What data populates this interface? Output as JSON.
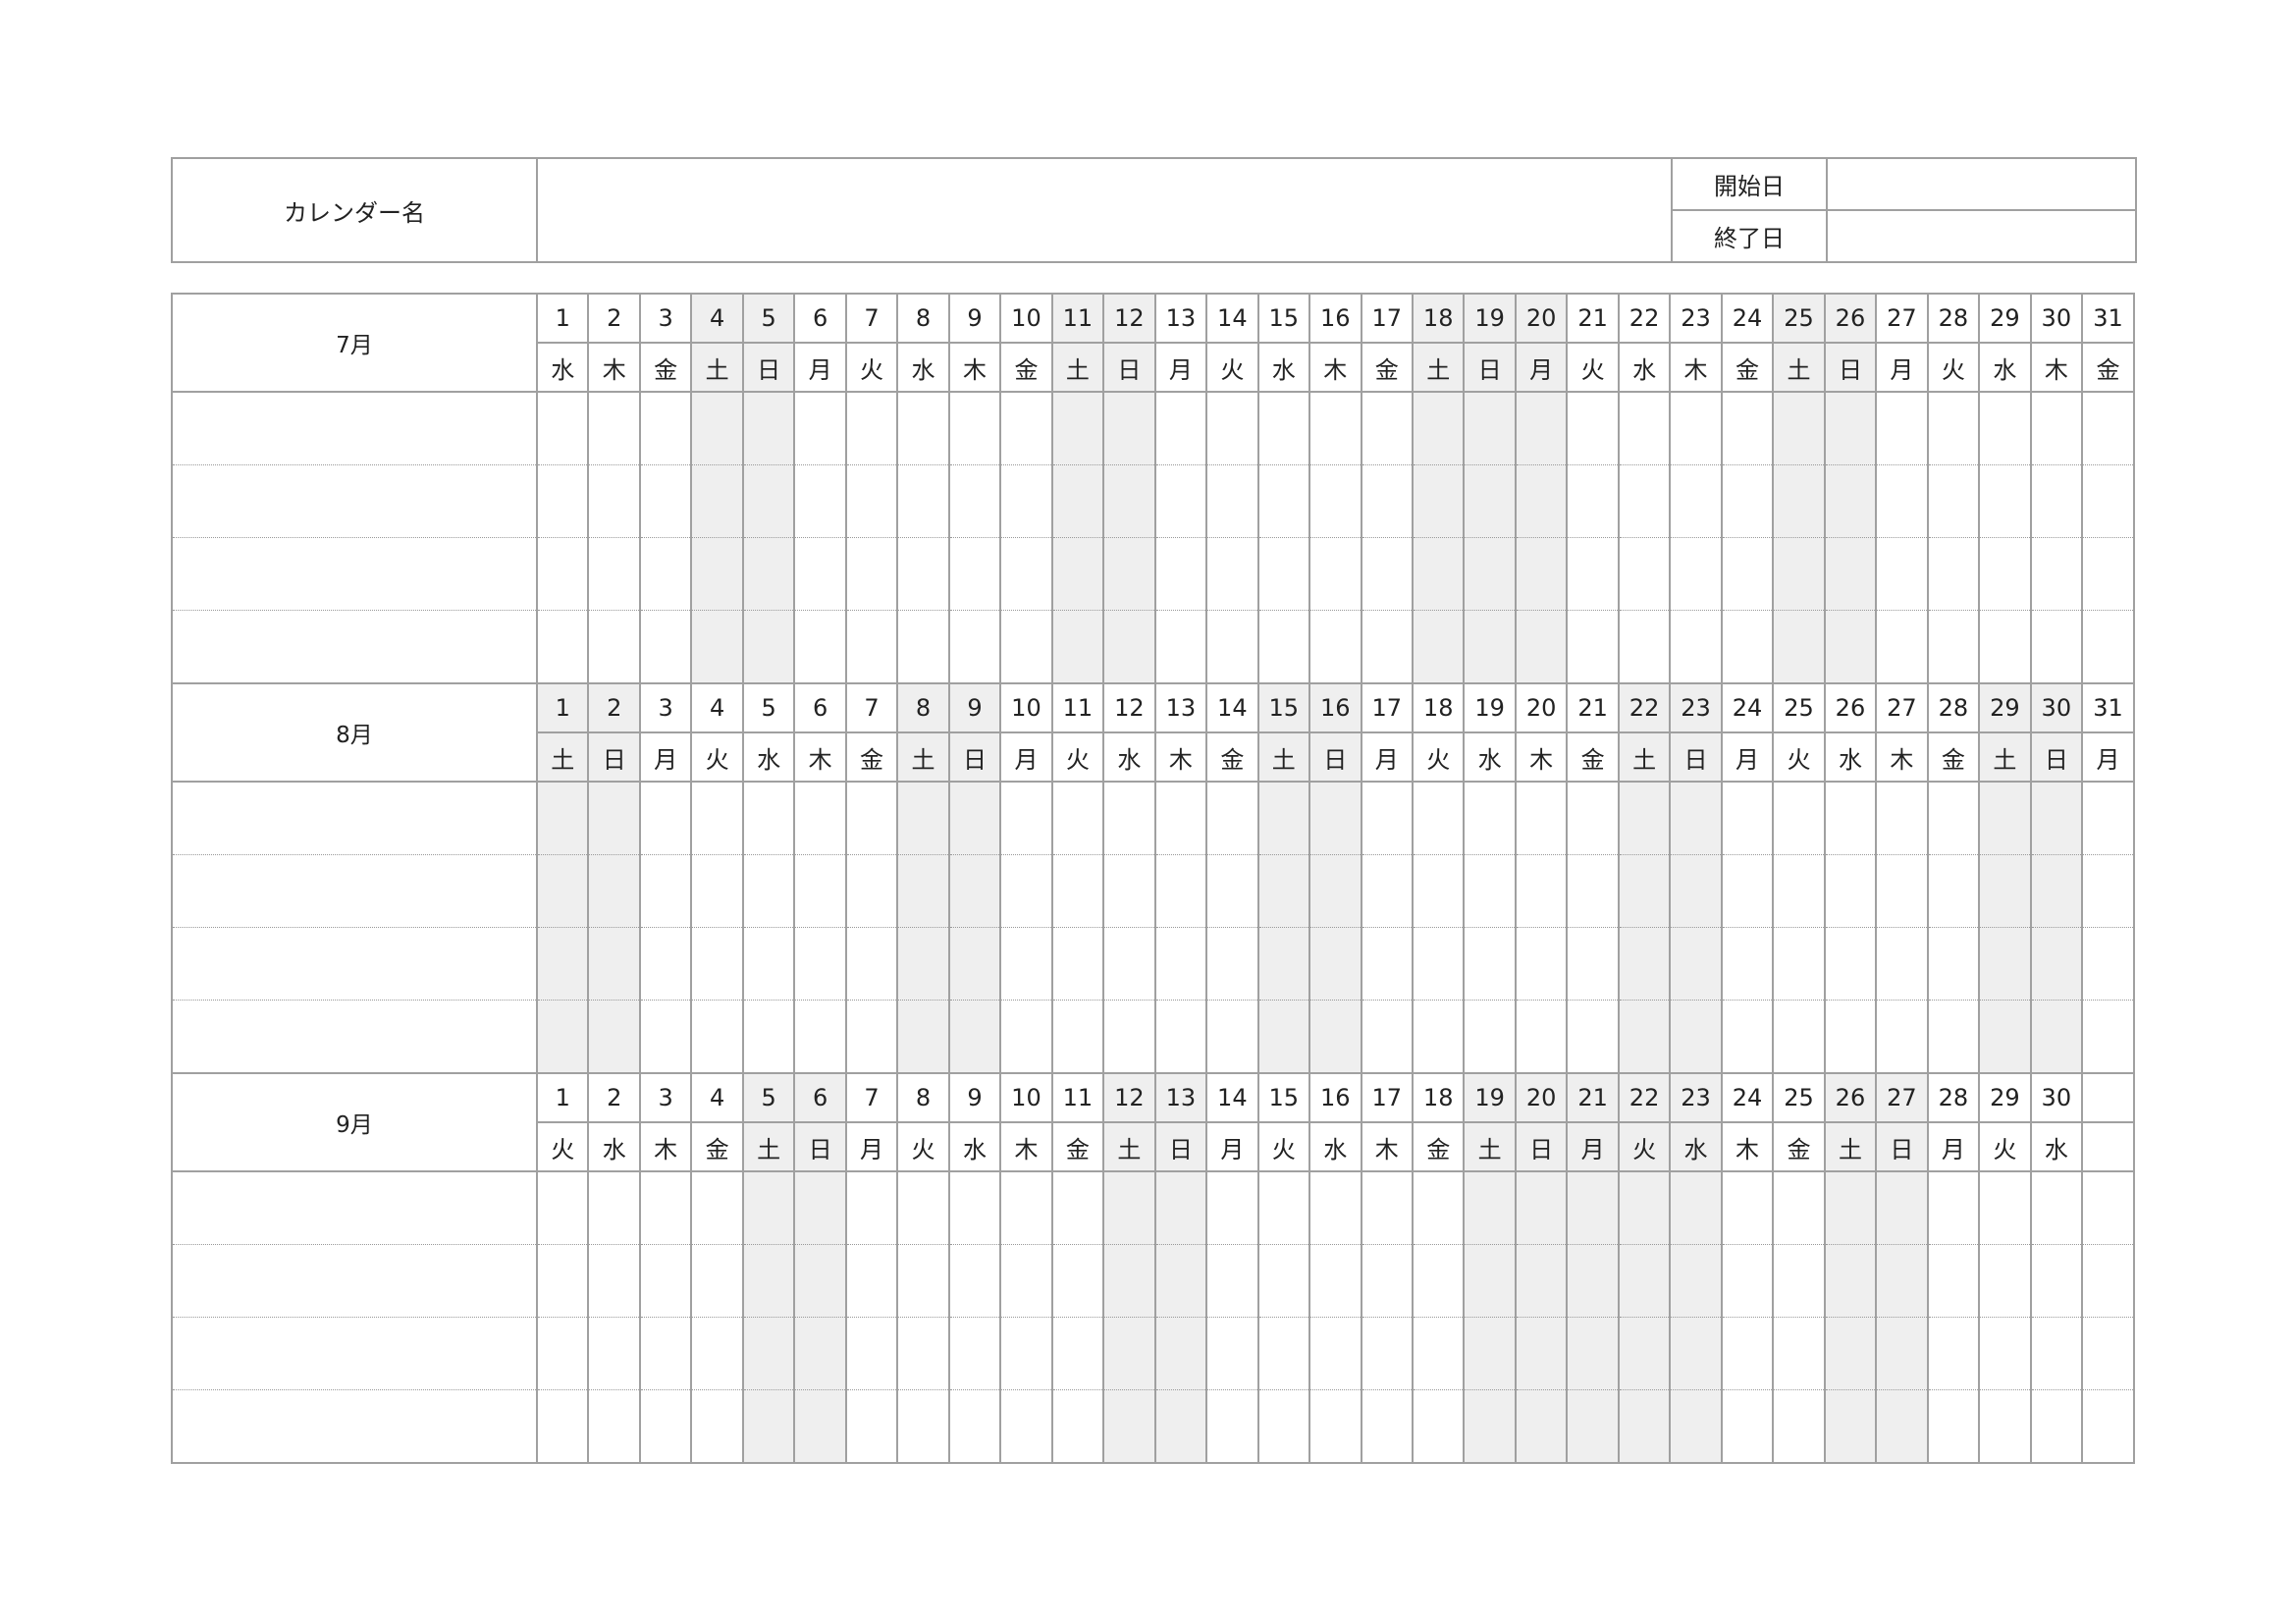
{
  "header": {
    "calendar_name_label": "カレンダー名",
    "calendar_name_value": "",
    "start_label": "開始日",
    "start_value": "",
    "end_label": "終了日",
    "end_value": ""
  },
  "shade_color": "#efefef",
  "rows_per_month": 4,
  "months": [
    {
      "label": "7月",
      "days": [
        "1",
        "2",
        "3",
        "4",
        "5",
        "6",
        "7",
        "8",
        "9",
        "10",
        "11",
        "12",
        "13",
        "14",
        "15",
        "16",
        "17",
        "18",
        "19",
        "20",
        "21",
        "22",
        "23",
        "24",
        "25",
        "26",
        "27",
        "28",
        "29",
        "30",
        "31"
      ],
      "weekdays": [
        "水",
        "木",
        "金",
        "土",
        "日",
        "月",
        "火",
        "水",
        "木",
        "金",
        "土",
        "日",
        "月",
        "火",
        "水",
        "木",
        "金",
        "土",
        "日",
        "月",
        "火",
        "水",
        "木",
        "金",
        "土",
        "日",
        "月",
        "火",
        "水",
        "木",
        "金"
      ],
      "shaded": [
        4,
        5,
        11,
        12,
        18,
        19,
        20,
        25,
        26
      ]
    },
    {
      "label": "8月",
      "days": [
        "1",
        "2",
        "3",
        "4",
        "5",
        "6",
        "7",
        "8",
        "9",
        "10",
        "11",
        "12",
        "13",
        "14",
        "15",
        "16",
        "17",
        "18",
        "19",
        "20",
        "21",
        "22",
        "23",
        "24",
        "25",
        "26",
        "27",
        "28",
        "29",
        "30",
        "31"
      ],
      "weekdays": [
        "土",
        "日",
        "月",
        "火",
        "水",
        "木",
        "金",
        "土",
        "日",
        "月",
        "火",
        "水",
        "木",
        "金",
        "土",
        "日",
        "月",
        "火",
        "水",
        "木",
        "金",
        "土",
        "日",
        "月",
        "火",
        "水",
        "木",
        "金",
        "土",
        "日",
        "月"
      ],
      "shaded": [
        1,
        2,
        8,
        9,
        15,
        16,
        22,
        23,
        29,
        30
      ]
    },
    {
      "label": "9月",
      "days": [
        "1",
        "2",
        "3",
        "4",
        "5",
        "6",
        "7",
        "8",
        "9",
        "10",
        "11",
        "12",
        "13",
        "14",
        "15",
        "16",
        "17",
        "18",
        "19",
        "20",
        "21",
        "22",
        "23",
        "24",
        "25",
        "26",
        "27",
        "28",
        "29",
        "30",
        ""
      ],
      "weekdays": [
        "火",
        "水",
        "木",
        "金",
        "土",
        "日",
        "月",
        "火",
        "水",
        "木",
        "金",
        "土",
        "日",
        "月",
        "火",
        "水",
        "木",
        "金",
        "土",
        "日",
        "月",
        "火",
        "水",
        "木",
        "金",
        "土",
        "日",
        "月",
        "火",
        "水",
        ""
      ],
      "shaded": [
        5,
        6,
        12,
        13,
        19,
        20,
        21,
        22,
        23,
        26,
        27
      ]
    }
  ]
}
